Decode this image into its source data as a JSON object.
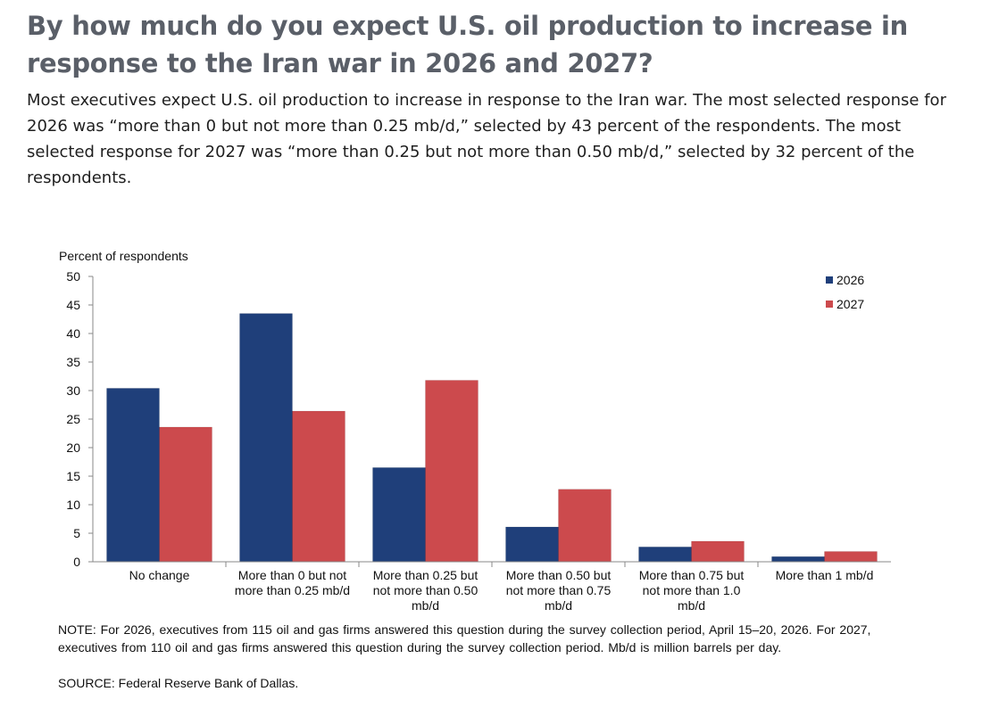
{
  "header": {
    "title": "By how much do you expect U.S. oil production to increase in response to the Iran war in 2026 and 2027?",
    "summary": "Most executives expect U.S. oil production to increase in response to the Iran war. The most selected response for 2026 was “more than 0 but not more than 0.25 mb/d,” selected by 43 percent of the respondents. The most selected response for 2027 was “more than 0.25 but not more than 0.50 mb/d,” selected by 32 percent of the respondents."
  },
  "chart_data": {
    "type": "bar",
    "title": "",
    "xlabel": "",
    "ylabel": "Percent of respondents",
    "ylim": [
      0,
      50
    ],
    "yticks": [
      0,
      5,
      10,
      15,
      20,
      25,
      30,
      35,
      40,
      45,
      50
    ],
    "grid": false,
    "legend_position": "top-right",
    "categories": [
      [
        "No change"
      ],
      [
        "More than 0 but not",
        "more than 0.25 mb/d"
      ],
      [
        "More than 0.25 but",
        "not more than 0.50",
        "mb/d"
      ],
      [
        "More than 0.50 but",
        "not more than 0.75",
        "mb/d"
      ],
      [
        "More than 0.75 but",
        "not more than 1.0",
        "mb/d"
      ],
      [
        "More than 1 mb/d"
      ]
    ],
    "series": [
      {
        "name": "2026",
        "color": "#1f3f7a",
        "values": [
          30.4,
          43.5,
          16.5,
          6.1,
          2.6,
          0.9
        ]
      },
      {
        "name": "2027",
        "color": "#cc4a4d",
        "values": [
          23.6,
          26.4,
          31.8,
          12.7,
          3.6,
          1.8
        ]
      }
    ]
  },
  "footer": {
    "note": "NOTE: For 2026, executives from 115 oil and gas firms answered this question during the survey collection period, April 15–20, 2026. For 2027, executives from 110 oil and gas firms answered this question during the survey collection period. Mb/d is million barrels per day.",
    "source": "SOURCE: Federal Reserve Bank of Dallas."
  }
}
